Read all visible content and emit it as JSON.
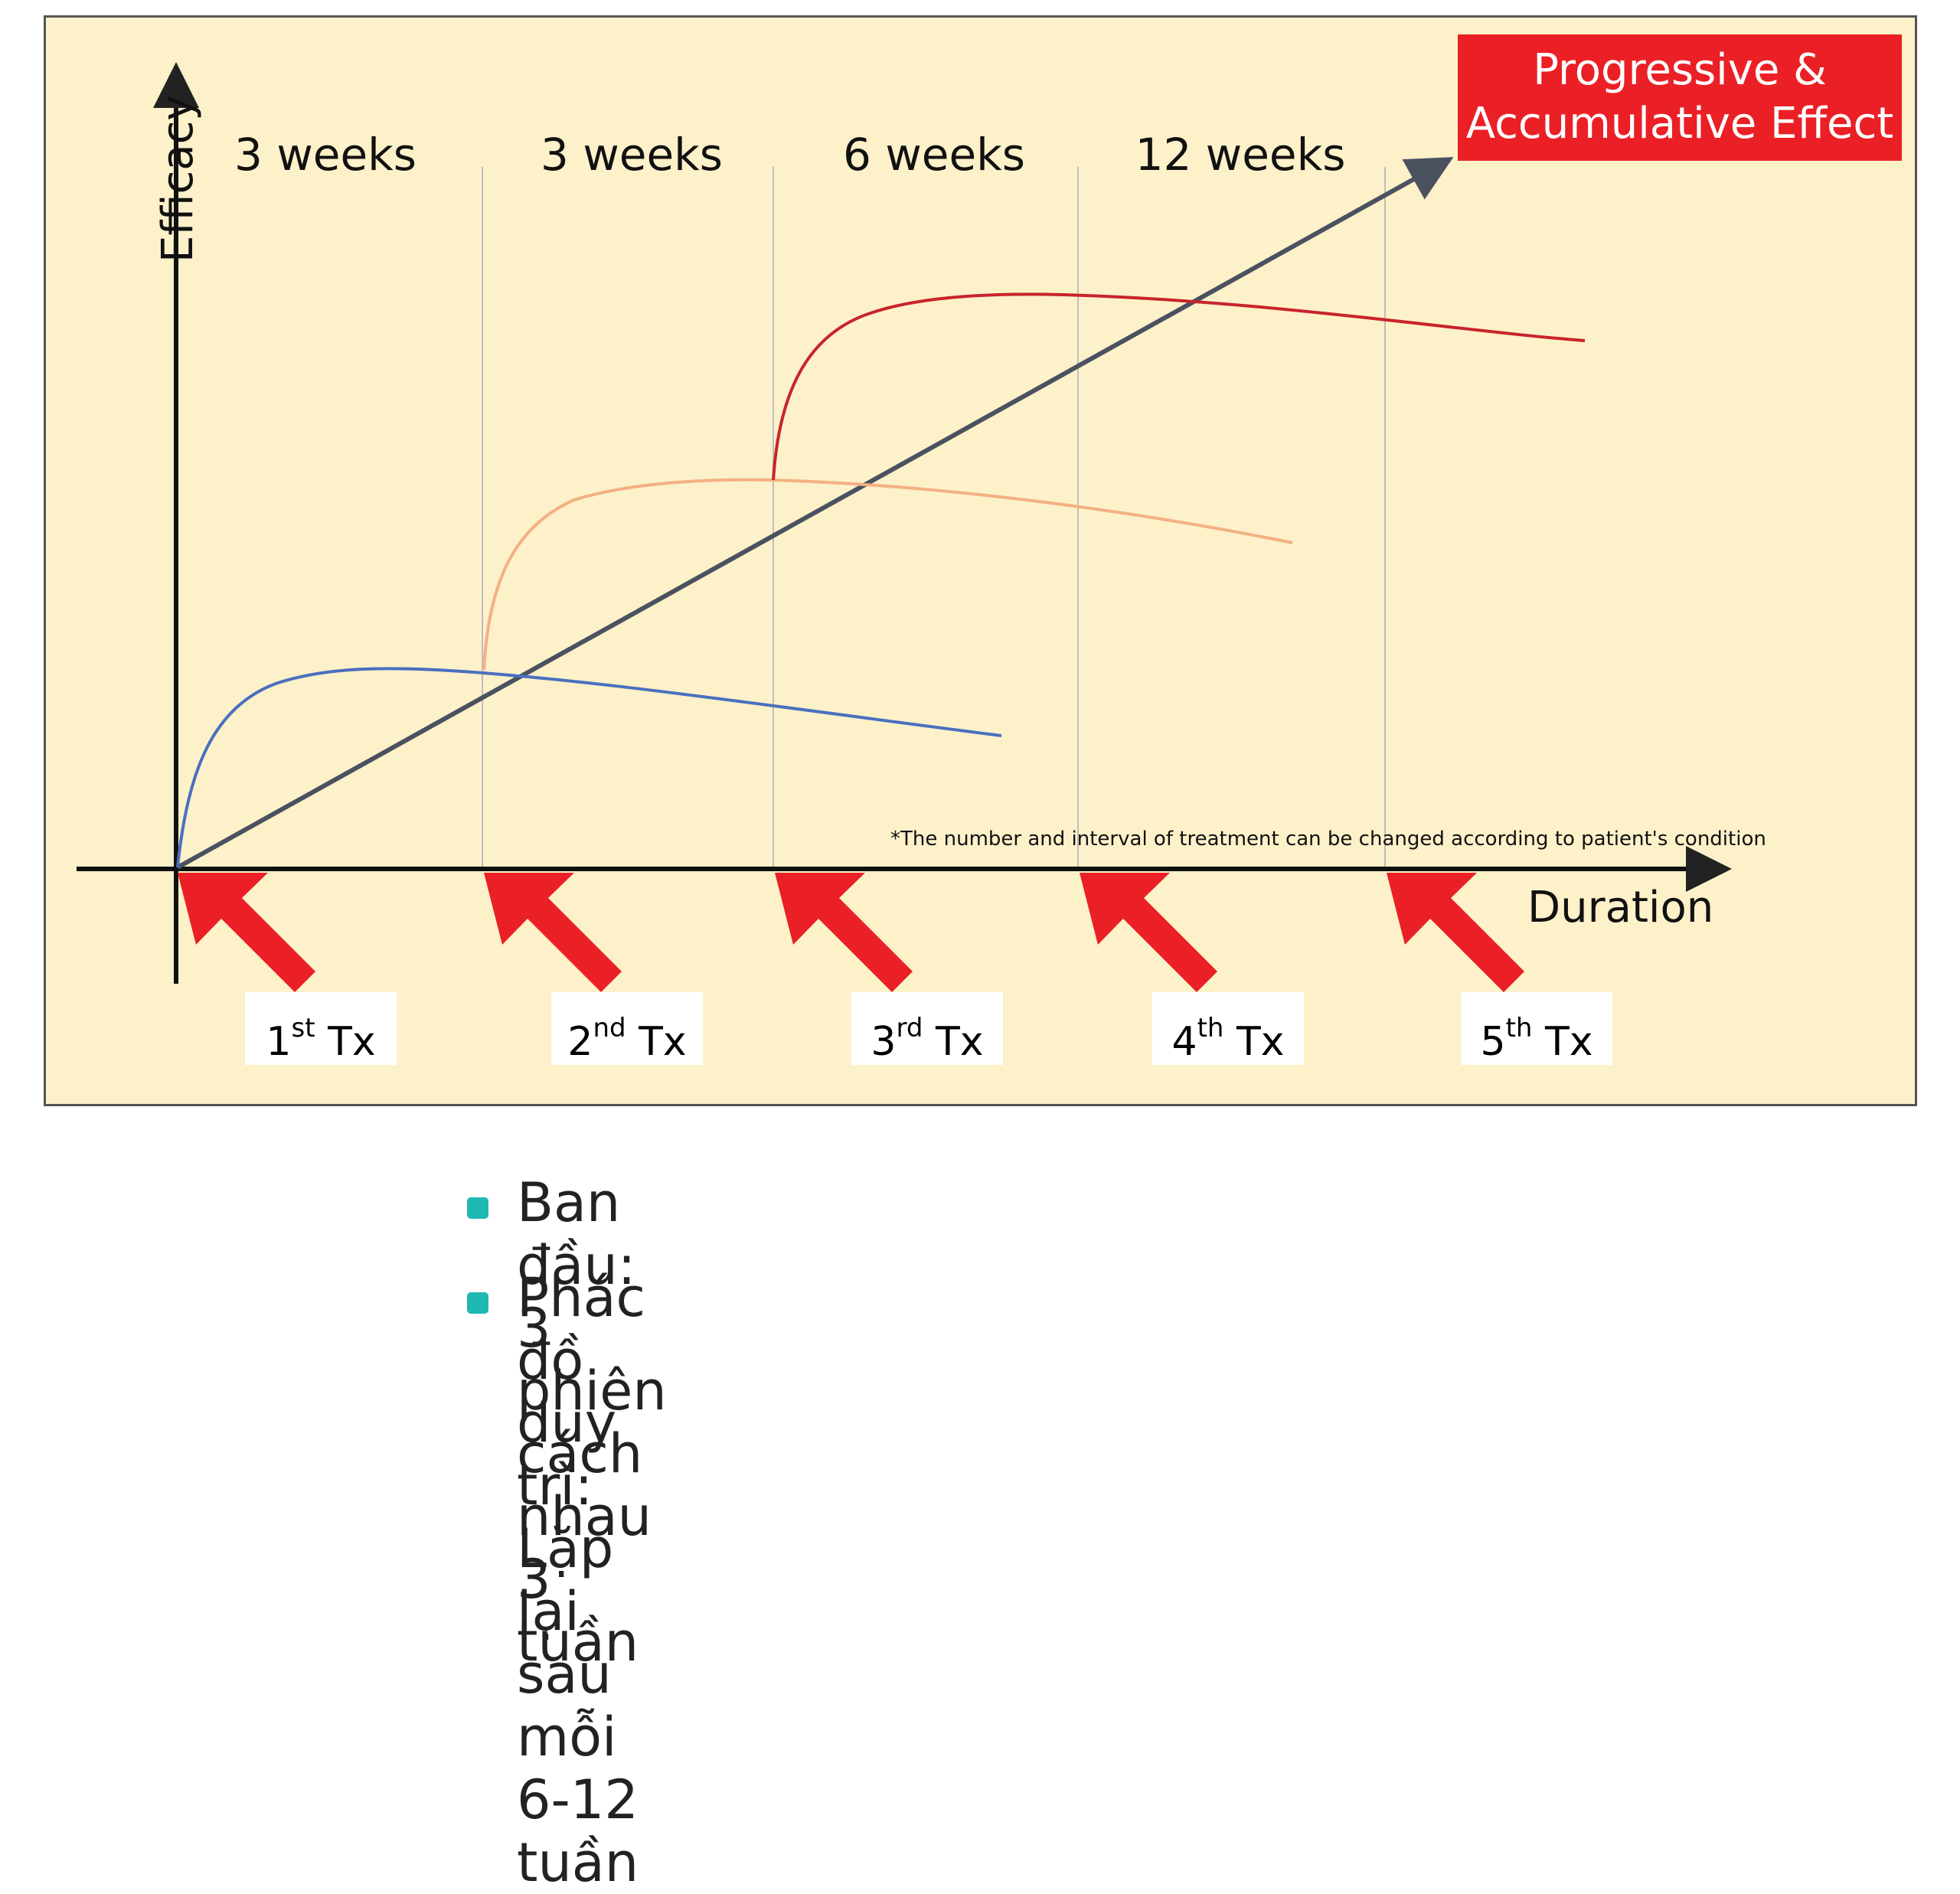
{
  "colors": {
    "background": "#fdf1ca",
    "callout": "#ea2026",
    "arrows": "#ea2026",
    "line_linear": "#4a5260",
    "curve_1": "#4a6fbf",
    "curve_2": "#f3b083",
    "curve_3": "#c8242b",
    "bullet": "#1fb8b3"
  },
  "diagram": {
    "y_axis_label": "Efficacy",
    "x_axis_label": "Duration",
    "periods": [
      "3 weeks",
      "3 weeks",
      "6 weeks",
      "12 weeks"
    ],
    "callout": {
      "line1": "Progressive &",
      "line2": "Accumulative Effect"
    },
    "footnote": "*The number and interval of treatment can be changed according to patient's condition",
    "treatments": [
      {
        "num": "1",
        "suffix": "st",
        "unit": "Tx"
      },
      {
        "num": "2",
        "suffix": "nd",
        "unit": "Tx"
      },
      {
        "num": "3",
        "suffix": "rd",
        "unit": "Tx"
      },
      {
        "num": "4",
        "suffix": "th",
        "unit": "Tx"
      },
      {
        "num": "5",
        "suffix": "th",
        "unit": "Tx"
      }
    ],
    "arrow_icon": "diagonal-red-arrow-icon"
  },
  "bullets": [
    "Ban đầu: 3 phiên cách nhau 3 tuần",
    "Phác đồ duy trì: Lặp lại sau mỗi 6-12 tuần"
  ]
}
